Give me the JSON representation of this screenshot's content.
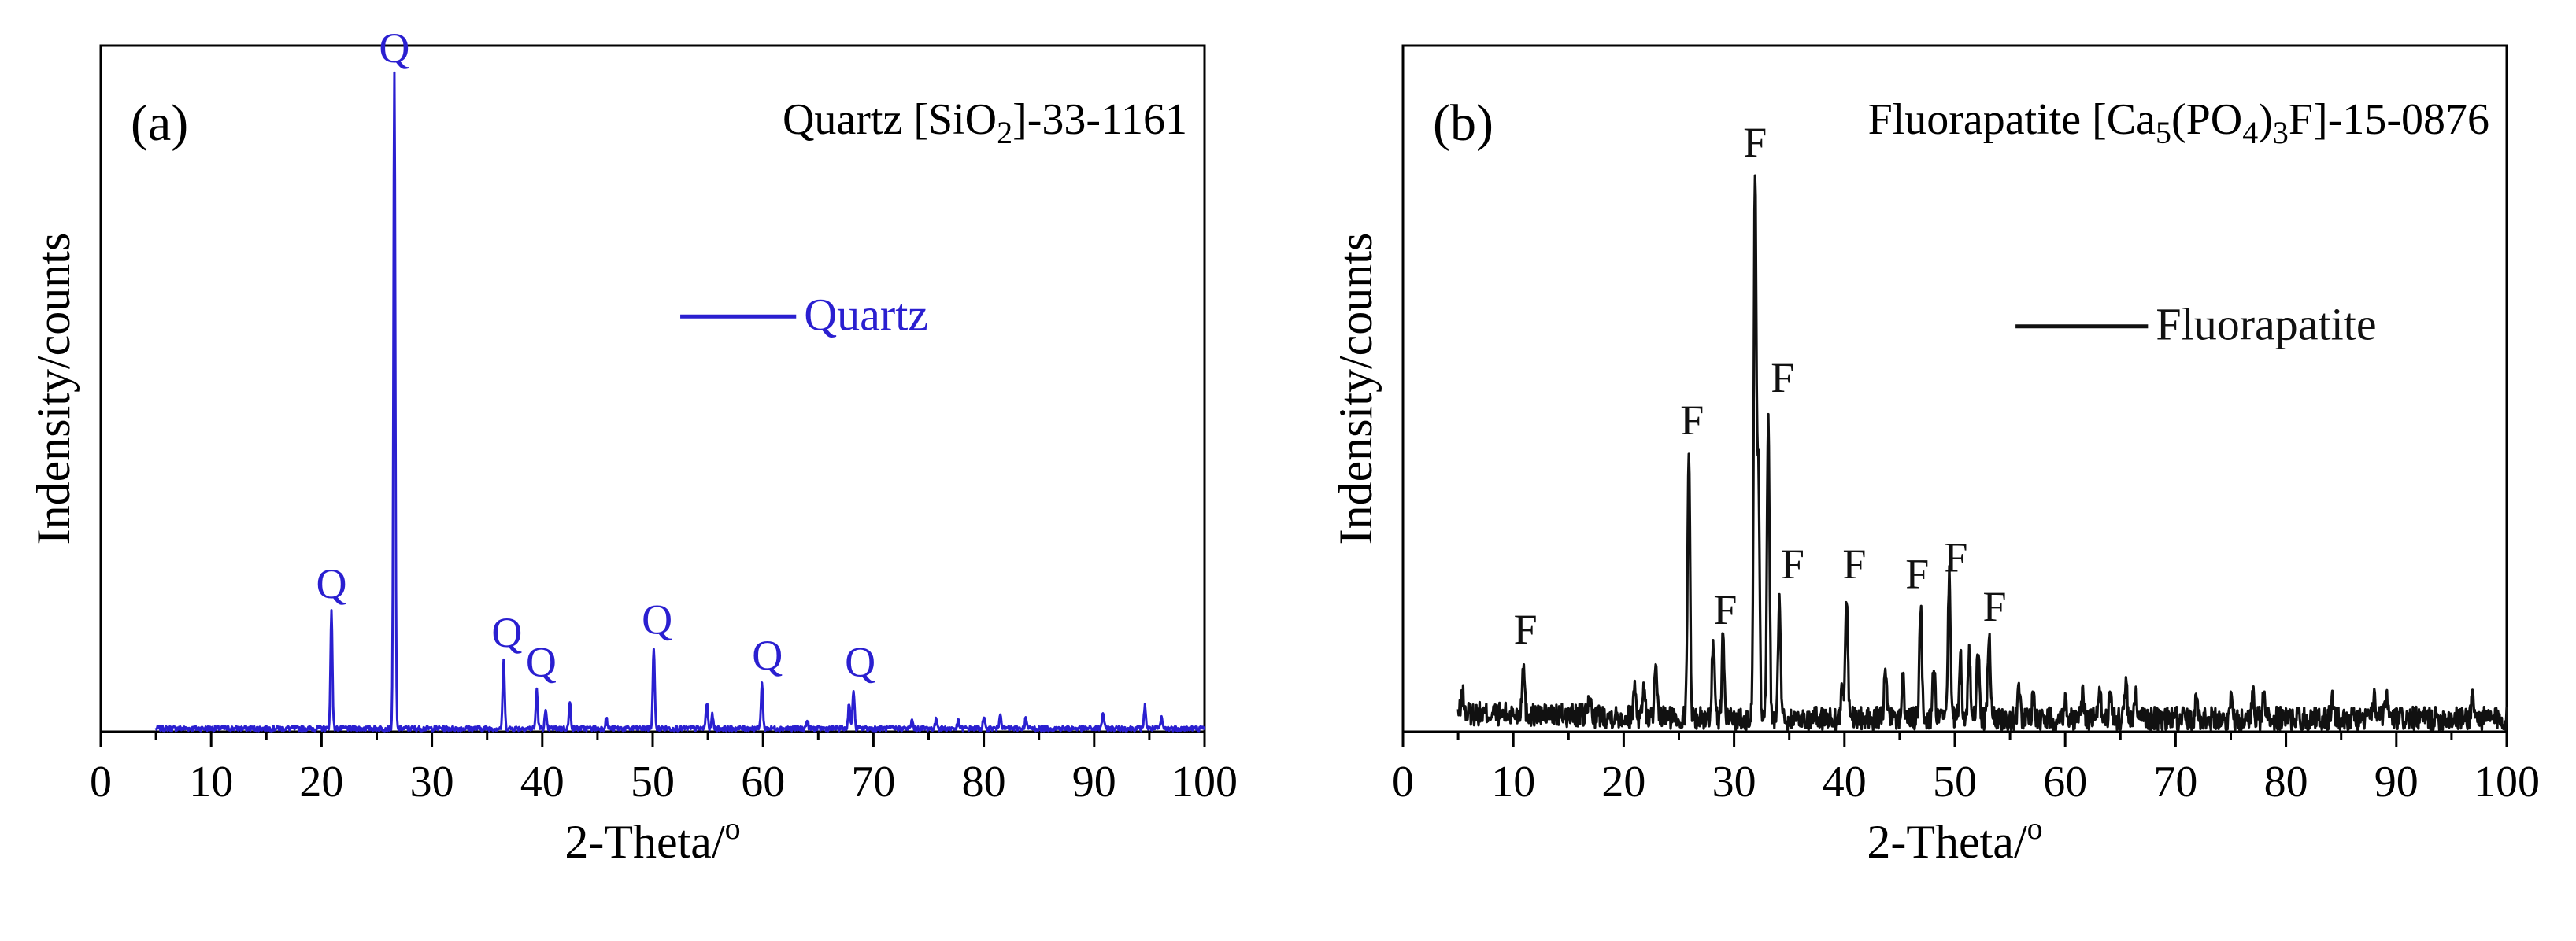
{
  "chart_data": [
    {
      "type": "line",
      "panel_label": "(a)",
      "reference": {
        "prefix": "Quartz [SiO",
        "sub": "2",
        "suffix": "]-33-1161"
      },
      "xlabel": "2-Theta/",
      "xlabel_degree": "o",
      "ylabel": "Indensity/counts",
      "xlim": [
        0,
        100
      ],
      "ylim": [
        0,
        1.05
      ],
      "xticks": [
        "0",
        "10",
        "20",
        "30",
        "40",
        "50",
        "60",
        "70",
        "80",
        "90",
        "100"
      ],
      "grid": false,
      "legend": {
        "position": "center-right",
        "entries": [
          "Quartz"
        ]
      },
      "color": "#2a1fd0",
      "series": [
        {
          "name": "Quartz",
          "x_start": 5,
          "x_end": 100,
          "baseline": 0.005,
          "peaks": [
            {
              "x": 20.9,
              "y": 0.18
            },
            {
              "x": 26.6,
              "y": 1.0
            },
            {
              "x": 36.5,
              "y": 0.105
            },
            {
              "x": 39.5,
              "y": 0.06
            },
            {
              "x": 40.3,
              "y": 0.025
            },
            {
              "x": 42.5,
              "y": 0.04
            },
            {
              "x": 45.8,
              "y": 0.015
            },
            {
              "x": 50.1,
              "y": 0.125
            },
            {
              "x": 54.9,
              "y": 0.04
            },
            {
              "x": 55.4,
              "y": 0.02
            },
            {
              "x": 59.9,
              "y": 0.07
            },
            {
              "x": 64.0,
              "y": 0.012
            },
            {
              "x": 67.8,
              "y": 0.04
            },
            {
              "x": 68.2,
              "y": 0.06
            },
            {
              "x": 73.5,
              "y": 0.012
            },
            {
              "x": 75.7,
              "y": 0.015
            },
            {
              "x": 77.7,
              "y": 0.012
            },
            {
              "x": 80.0,
              "y": 0.015
            },
            {
              "x": 81.5,
              "y": 0.025
            },
            {
              "x": 83.8,
              "y": 0.015
            },
            {
              "x": 90.8,
              "y": 0.025
            },
            {
              "x": 94.6,
              "y": 0.035
            },
            {
              "x": 96.1,
              "y": 0.015
            }
          ]
        }
      ],
      "annotations": [
        {
          "text": "Q",
          "x": 20.9,
          "y": 0.205
        },
        {
          "text": "Q",
          "x": 26.6,
          "y": 1.025
        },
        {
          "text": "Q",
          "x": 36.8,
          "y": 0.13
        },
        {
          "text": "Q",
          "x": 39.9,
          "y": 0.085
        },
        {
          "text": "Q",
          "x": 50.4,
          "y": 0.15
        },
        {
          "text": "Q",
          "x": 60.4,
          "y": 0.095
        },
        {
          "text": "Q",
          "x": 68.8,
          "y": 0.085
        }
      ]
    },
    {
      "type": "line",
      "panel_label": "(b)",
      "reference": {
        "parts": [
          {
            "t": "Fluorapatite [Ca",
            "s": "normal"
          },
          {
            "t": "5",
            "s": "sub"
          },
          {
            "t": "(PO",
            "s": "normal"
          },
          {
            "t": "4",
            "s": "sub"
          },
          {
            "t": ")",
            "s": "normal"
          },
          {
            "t": "3",
            "s": "sub"
          },
          {
            "t": "F]-15-0876",
            "s": "normal"
          }
        ]
      },
      "xlabel": "2-Theta/",
      "xlabel_degree": "o",
      "ylabel": "Indensity/counts",
      "xlim": [
        0,
        100
      ],
      "ylim": [
        0,
        1.05
      ],
      "xticks": [
        "0",
        "10",
        "20",
        "30",
        "40",
        "50",
        "60",
        "70",
        "80",
        "90",
        "100"
      ],
      "grid": false,
      "legend": {
        "position": "center-right",
        "entries": [
          "Fluorapatite"
        ]
      },
      "color": "#111111",
      "series": [
        {
          "name": "Fluorapatite",
          "x_start": 5,
          "x_end": 100,
          "baseline": 0.02,
          "peaks": [
            {
              "x": 5.4,
              "y": 0.03
            },
            {
              "x": 10.9,
              "y": 0.08
            },
            {
              "x": 16.9,
              "y": 0.03
            },
            {
              "x": 21.0,
              "y": 0.05
            },
            {
              "x": 21.8,
              "y": 0.045
            },
            {
              "x": 22.9,
              "y": 0.07
            },
            {
              "x": 25.9,
              "y": 0.41
            },
            {
              "x": 28.1,
              "y": 0.12
            },
            {
              "x": 29.0,
              "y": 0.125
            },
            {
              "x": 31.9,
              "y": 0.835
            },
            {
              "x": 32.2,
              "y": 0.37
            },
            {
              "x": 33.1,
              "y": 0.475
            },
            {
              "x": 34.1,
              "y": 0.19
            },
            {
              "x": 39.8,
              "y": 0.05
            },
            {
              "x": 40.2,
              "y": 0.19
            },
            {
              "x": 43.7,
              "y": 0.08
            },
            {
              "x": 45.3,
              "y": 0.06
            },
            {
              "x": 46.9,
              "y": 0.175
            },
            {
              "x": 48.1,
              "y": 0.08
            },
            {
              "x": 49.5,
              "y": 0.225
            },
            {
              "x": 50.5,
              "y": 0.1
            },
            {
              "x": 51.3,
              "y": 0.1
            },
            {
              "x": 52.1,
              "y": 0.11
            },
            {
              "x": 53.1,
              "y": 0.13
            },
            {
              "x": 55.8,
              "y": 0.05
            },
            {
              "x": 57.1,
              "y": 0.035
            },
            {
              "x": 60.0,
              "y": 0.035
            },
            {
              "x": 61.6,
              "y": 0.04
            },
            {
              "x": 63.1,
              "y": 0.055
            },
            {
              "x": 64.1,
              "y": 0.04
            },
            {
              "x": 65.5,
              "y": 0.05
            },
            {
              "x": 66.4,
              "y": 0.04
            },
            {
              "x": 71.9,
              "y": 0.04
            },
            {
              "x": 75.1,
              "y": 0.035
            },
            {
              "x": 77.0,
              "y": 0.035
            },
            {
              "x": 78.0,
              "y": 0.035
            },
            {
              "x": 84.2,
              "y": 0.035
            },
            {
              "x": 88.0,
              "y": 0.04
            },
            {
              "x": 89.1,
              "y": 0.04
            },
            {
              "x": 96.9,
              "y": 0.04
            }
          ]
        }
      ],
      "annotations": [
        {
          "text": "F",
          "x": 11.1,
          "y": 0.135
        },
        {
          "text": "F",
          "x": 26.2,
          "y": 0.455
        },
        {
          "text": "F",
          "x": 29.2,
          "y": 0.165
        },
        {
          "text": "F",
          "x": 31.9,
          "y": 0.88
        },
        {
          "text": "F",
          "x": 34.4,
          "y": 0.52
        },
        {
          "text": "F",
          "x": 35.3,
          "y": 0.235
        },
        {
          "text": "F",
          "x": 40.9,
          "y": 0.235
        },
        {
          "text": "F",
          "x": 46.6,
          "y": 0.22
        },
        {
          "text": "F",
          "x": 50.1,
          "y": 0.245
        },
        {
          "text": "F",
          "x": 53.6,
          "y": 0.17
        }
      ]
    }
  ]
}
